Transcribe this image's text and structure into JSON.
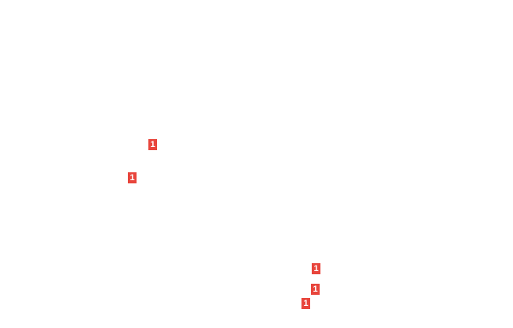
{
  "badge_color": "#e8453c",
  "badges": [
    {
      "label": "1"
    },
    {
      "label": "1"
    },
    {
      "label": "1"
    },
    {
      "label": "1"
    },
    {
      "label": "1"
    }
  ]
}
